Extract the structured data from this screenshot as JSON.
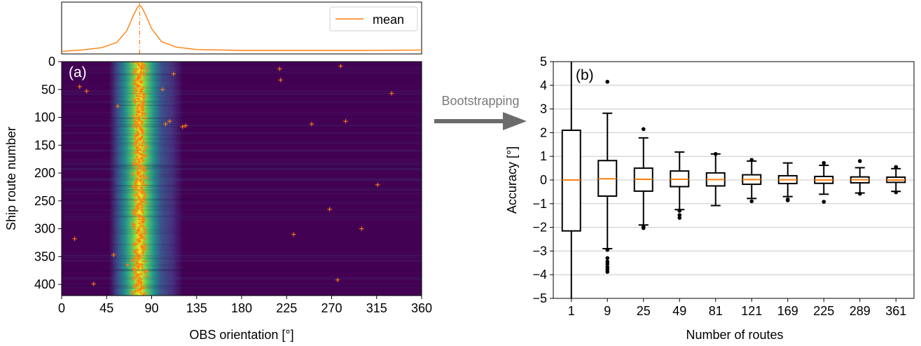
{
  "chart_data": [
    {
      "type": "line",
      "panel": "top-marginal",
      "series": [
        {
          "name": "mean",
          "x": [
            0,
            20,
            40,
            55,
            65,
            72,
            76,
            78,
            80,
            84,
            90,
            100,
            115,
            135,
            180,
            240,
            300,
            360
          ],
          "y": [
            0.01,
            0.04,
            0.09,
            0.2,
            0.45,
            0.8,
            0.97,
            1.0,
            0.97,
            0.8,
            0.5,
            0.22,
            0.1,
            0.05,
            0.03,
            0.03,
            0.03,
            0.04
          ]
        }
      ],
      "peak_x": 78,
      "xlim": [
        0,
        360
      ],
      "legend": "top-right",
      "color": "#ff7f0e"
    },
    {
      "type": "heatmap",
      "panel": "a",
      "label": "(a)",
      "xlabel": "OBS orientation [°]",
      "ylabel": "Ship route number",
      "xlim": [
        0,
        360
      ],
      "ylim": [
        420,
        0
      ],
      "xticks": [
        0,
        45,
        90,
        135,
        180,
        225,
        270,
        315,
        360
      ],
      "yticks": [
        0,
        50,
        100,
        150,
        200,
        250,
        300,
        350,
        400
      ],
      "peak_center": 78,
      "colormap": "viridis",
      "outlier_markers": [
        [
          18,
          45
        ],
        [
          25,
          53
        ],
        [
          279,
          8
        ],
        [
          218,
          13
        ],
        [
          219,
          33
        ],
        [
          330,
          57
        ],
        [
          112,
          22
        ],
        [
          101,
          50
        ],
        [
          56,
          80
        ],
        [
          104,
          112
        ],
        [
          108,
          107
        ],
        [
          121,
          117
        ],
        [
          124,
          115
        ],
        [
          250,
          112
        ],
        [
          284,
          107
        ],
        [
          316,
          221
        ],
        [
          268,
          265
        ],
        [
          232,
          310
        ],
        [
          300,
          300
        ],
        [
          13,
          318
        ],
        [
          52,
          347
        ],
        [
          32,
          399
        ],
        [
          276,
          392
        ],
        [
          66,
          365
        ]
      ],
      "marker_color": "#ff7f0e"
    },
    {
      "type": "box",
      "panel": "b",
      "label": "(b)",
      "xlabel": "Number of routes",
      "ylabel": "Accuracy [°]",
      "ylim": [
        -5,
        5
      ],
      "yticks": [
        -5,
        -4,
        -3,
        -2,
        -1,
        0,
        1,
        2,
        3,
        4,
        5
      ],
      "grid": "horizontal",
      "categories": [
        "1",
        "9",
        "25",
        "49",
        "81",
        "121",
        "169",
        "225",
        "289",
        "361"
      ],
      "boxes": [
        {
          "q1": -2.15,
          "median": 0.0,
          "q3": 2.1,
          "whisker_low": -5.0,
          "whisker_high": 5.0,
          "fliers": []
        },
        {
          "q1": -0.68,
          "median": 0.05,
          "q3": 0.82,
          "whisker_low": -2.9,
          "whisker_high": 2.82,
          "fliers": [
            4.15,
            -2.95,
            -3.3,
            -3.45,
            -3.55,
            -3.68,
            -3.78,
            -3.88
          ]
        },
        {
          "q1": -0.47,
          "median": 0.03,
          "q3": 0.5,
          "whisker_low": -1.9,
          "whisker_high": 1.78,
          "fliers": [
            2.15,
            -1.98,
            -2.03
          ]
        },
        {
          "q1": -0.28,
          "median": 0.03,
          "q3": 0.38,
          "whisker_low": -1.25,
          "whisker_high": 1.18,
          "fliers": [
            -1.3,
            -1.48,
            -1.6
          ]
        },
        {
          "q1": -0.25,
          "median": 0.02,
          "q3": 0.3,
          "whisker_low": -1.08,
          "whisker_high": 1.1,
          "fliers": [
            1.1
          ]
        },
        {
          "q1": -0.18,
          "median": 0.02,
          "q3": 0.22,
          "whisker_low": -0.78,
          "whisker_high": 0.8,
          "fliers": [
            0.85,
            -0.9
          ]
        },
        {
          "q1": -0.15,
          "median": 0.01,
          "q3": 0.18,
          "whisker_low": -0.7,
          "whisker_high": 0.72,
          "fliers": [
            -0.82,
            -0.86
          ]
        },
        {
          "q1": -0.14,
          "median": 0.0,
          "q3": 0.15,
          "whisker_low": -0.6,
          "whisker_high": 0.62,
          "fliers": [
            0.72,
            -0.92
          ]
        },
        {
          "q1": -0.12,
          "median": 0.01,
          "q3": 0.13,
          "whisker_low": -0.55,
          "whisker_high": 0.52,
          "fliers": [
            0.8,
            -0.58
          ]
        },
        {
          "q1": -0.1,
          "median": 0.0,
          "q3": 0.12,
          "whisker_low": -0.48,
          "whisker_high": 0.48,
          "fliers": [
            0.55,
            -0.52
          ]
        }
      ],
      "median_color": "#ff7f0e"
    }
  ],
  "arrow": {
    "label": "Bootstrapping"
  },
  "colors": {
    "accent": "#ff7f0e",
    "arrow": "#6b6b6b",
    "heat_bg": "#440154"
  }
}
